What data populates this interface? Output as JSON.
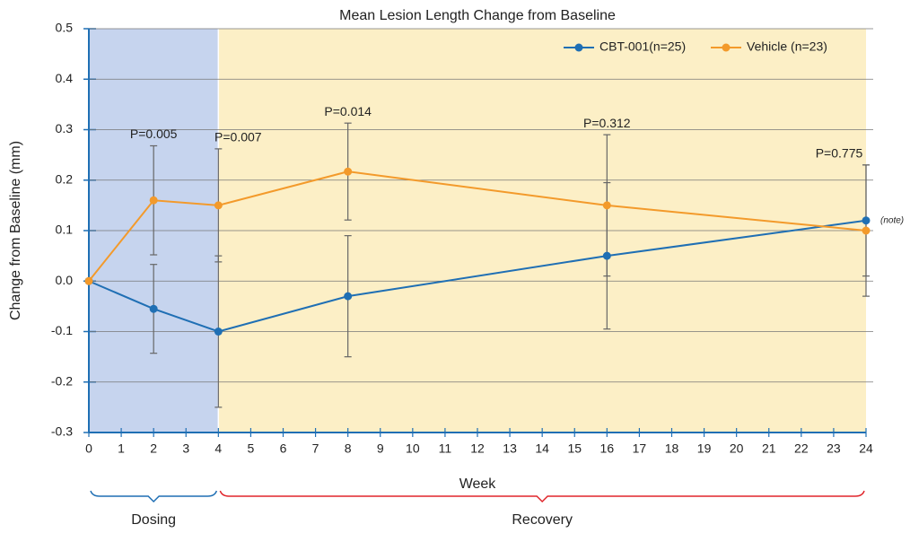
{
  "chart_data": {
    "type": "line",
    "title": "Mean Lesion Length Change from Baseline",
    "x_label": "Week",
    "y_label": "Change from Baseline (mm)",
    "x": [
      0,
      2,
      4,
      8,
      16,
      24
    ],
    "series": [
      {
        "name": "CBT-001(n=25)",
        "color": "#1f6fb4",
        "values": [
          0,
          -0.055,
          -0.1,
          -0.03,
          0.05,
          0.12
        ],
        "errors": [
          0,
          0.088,
          0.15,
          0.12,
          0.145,
          0.11
        ]
      },
      {
        "name": "Vehicle (n=23)",
        "color": "#f39a2b",
        "values": [
          0,
          0.16,
          0.15,
          0.217,
          0.15,
          0.1
        ],
        "errors": [
          0,
          0.108,
          0.112,
          0.096,
          0.14,
          0.13
        ]
      }
    ],
    "xlim": [
      0,
      24
    ],
    "ylim": [
      -0.3,
      0.5
    ],
    "xticks": [
      0,
      1,
      2,
      3,
      4,
      5,
      6,
      7,
      8,
      9,
      10,
      11,
      12,
      13,
      14,
      15,
      16,
      17,
      18,
      19,
      20,
      21,
      22,
      23,
      24
    ],
    "yticks": [
      0.5,
      0.4,
      0.3,
      0.2,
      0.1,
      {
        "value": 0,
        "label": "0.0"
      },
      -0.1,
      -0.2,
      -0.3
    ],
    "grid": true,
    "legend": "top-right",
    "regions": [
      {
        "label": "Dosing",
        "start": 0,
        "end": 4,
        "color": "#c6d4ee",
        "bracket_color": "#1f6fb4"
      },
      {
        "label": "Recovery",
        "start": 4,
        "end": 24,
        "color": "#fcefc6",
        "bracket_color": "#e0252b"
      }
    ],
    "annotations": [
      {
        "text": "P=0.005",
        "x": 2
      },
      {
        "text": "P=0.007",
        "x": 4
      },
      {
        "text": "P=0.014",
        "x": 8
      },
      {
        "text": "P=0.312",
        "x": 16
      },
      {
        "text": "P=0.775",
        "x": 24
      }
    ],
    "note": "(note)"
  }
}
